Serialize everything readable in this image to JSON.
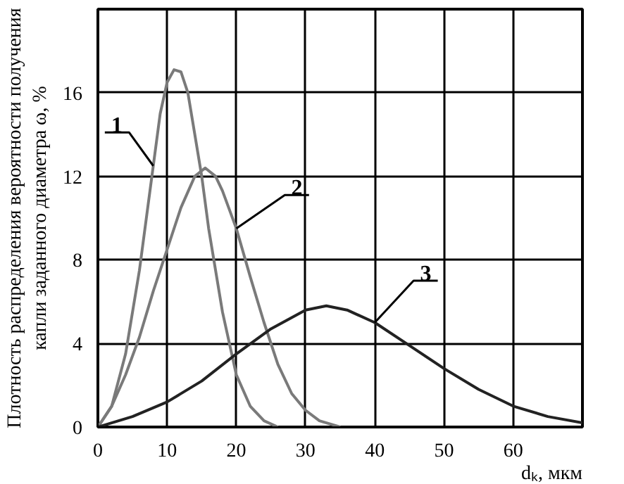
{
  "chart_data": {
    "type": "line",
    "ylabel": "Плотность распределения вероятности получения капли заданного диаметра ω, %",
    "xlabel": "dₖ, мкм",
    "xlim": [
      0,
      70
    ],
    "xticks": [
      0,
      10,
      20,
      30,
      40,
      50,
      60
    ],
    "ylim": [
      0,
      20
    ],
    "yticks": [
      0,
      4,
      8,
      12,
      16
    ],
    "grid": true,
    "line_style": "solid",
    "series": [
      {
        "name": "1",
        "color": "#7a7a7a",
        "x": [
          0,
          2,
          4,
          6,
          8,
          9,
          10,
          11,
          12,
          13,
          14,
          15,
          16,
          18,
          20,
          22,
          24,
          26
        ],
        "values": [
          0,
          1,
          3.5,
          7.5,
          12.5,
          15,
          16.5,
          17.1,
          17,
          16,
          14,
          12,
          9.5,
          5.5,
          2.5,
          1,
          0.3,
          0
        ]
      },
      {
        "name": "2",
        "color": "#7a7a7a",
        "x": [
          0,
          2,
          4,
          6,
          8,
          10,
          12,
          14,
          15.5,
          17,
          18,
          20,
          22,
          24,
          26,
          28,
          30,
          32,
          35
        ],
        "values": [
          0,
          1,
          2.5,
          4.3,
          6.5,
          8.5,
          10.5,
          12,
          12.4,
          12,
          11.3,
          9.5,
          7.2,
          5,
          3,
          1.6,
          0.8,
          0.3,
          0
        ]
      },
      {
        "name": "3",
        "color": "#222222",
        "x": [
          0,
          5,
          10,
          15,
          20,
          25,
          30,
          33,
          36,
          40,
          45,
          50,
          55,
          60,
          65,
          70
        ],
        "values": [
          0,
          0.5,
          1.2,
          2.2,
          3.5,
          4.7,
          5.6,
          5.8,
          5.6,
          5.0,
          3.9,
          2.8,
          1.8,
          1.0,
          0.5,
          0.2
        ]
      }
    ]
  }
}
